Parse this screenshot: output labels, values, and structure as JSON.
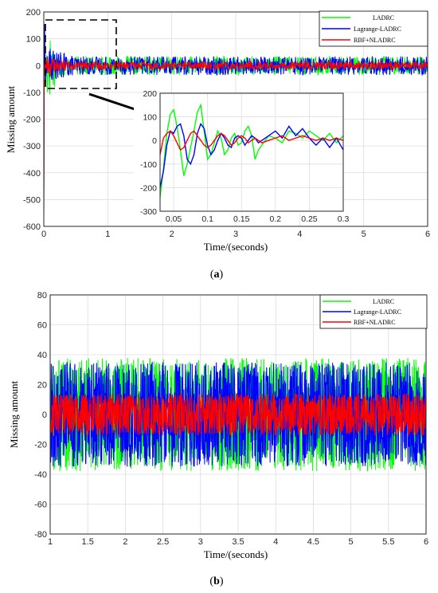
{
  "colors": {
    "LADRC": "#00ff00",
    "Lagrange-LADRC": "#0000ff",
    "RBF+NLADRC": "#ff0000"
  },
  "chart_data": [
    {
      "panel": "a",
      "type": "line",
      "caption": "(a)",
      "caption_letter": "a",
      "xlabel": "Time/(seconds)",
      "ylabel": "Missing amount",
      "xlim": [
        0,
        6
      ],
      "ylim": [
        -600,
        200
      ],
      "xticks": [
        "0",
        "1",
        "2",
        "3",
        "4",
        "5",
        "6"
      ],
      "yticks": [
        "200",
        "100",
        "0",
        "-100",
        "-200",
        "-300",
        "-400",
        "-500",
        "-600"
      ],
      "grid": true,
      "legend_position": "top-right",
      "series": [
        {
          "name": "LADRC",
          "color": "#00ff00",
          "x": [
            0,
            0.005,
            0.02,
            0.05,
            0.1,
            0.2,
            0.3,
            0.5,
            1,
            2,
            3,
            4,
            5,
            6
          ],
          "y": [
            -500,
            -240,
            -150,
            150,
            120,
            60,
            40,
            35,
            35,
            35,
            35,
            35,
            35,
            35
          ]
        },
        {
          "name": "Lagrange-LADRC",
          "color": "#0000ff",
          "x": [
            0,
            0.005,
            0.02,
            0.05,
            0.1,
            0.2,
            0.3,
            0.5,
            1,
            2,
            3,
            4,
            5,
            6
          ],
          "y": [
            -560,
            -200,
            -130,
            70,
            70,
            50,
            50,
            35,
            35,
            35,
            35,
            35,
            35,
            35
          ]
        },
        {
          "name": "RBF+NLADRC",
          "color": "#ff0000",
          "x": [
            0,
            0.005,
            0.02,
            0.05,
            0.1,
            0.2,
            0.3,
            0.5,
            1,
            2,
            3,
            4,
            5,
            6
          ],
          "y": [
            -600,
            -60,
            20,
            40,
            40,
            20,
            20,
            15,
            15,
            15,
            15,
            15,
            15,
            15
          ]
        }
      ],
      "inset": {
        "xlim": [
          0.03,
          0.3
        ],
        "ylim": [
          -300,
          200
        ],
        "xticks": [
          "0.05",
          "0.1",
          "0.15",
          "0.2",
          "0.25",
          "0.3"
        ],
        "yticks": [
          "200",
          "100",
          "0",
          "-100",
          "-200",
          "-300"
        ],
        "series": [
          {
            "name": "LADRC",
            "color": "#00ff00",
            "x": [
              0.03,
              0.035,
              0.04,
              0.045,
              0.05,
              0.055,
              0.06,
              0.065,
              0.07,
              0.075,
              0.08,
              0.085,
              0.09,
              0.095,
              0.1,
              0.105,
              0.11,
              0.115,
              0.12,
              0.125,
              0.13,
              0.135,
              0.14,
              0.145,
              0.15,
              0.155,
              0.16,
              0.165,
              0.17,
              0.175,
              0.18,
              0.19,
              0.2,
              0.21,
              0.22,
              0.23,
              0.24,
              0.25,
              0.26,
              0.27,
              0.28,
              0.29,
              0.3
            ],
            "y": [
              -240,
              -120,
              30,
              110,
              130,
              60,
              -40,
              -150,
              -100,
              -30,
              40,
              120,
              150,
              40,
              -80,
              -60,
              -10,
              40,
              10,
              -60,
              -40,
              10,
              30,
              -20,
              -10,
              40,
              60,
              20,
              -80,
              -40,
              -20,
              20,
              10,
              -10,
              40,
              30,
              10,
              40,
              20,
              0,
              30,
              -10,
              20
            ]
          },
          {
            "name": "Lagrange-LADRC",
            "color": "#0000ff",
            "x": [
              0.03,
              0.035,
              0.04,
              0.045,
              0.05,
              0.055,
              0.06,
              0.065,
              0.07,
              0.075,
              0.08,
              0.085,
              0.09,
              0.095,
              0.1,
              0.105,
              0.11,
              0.115,
              0.12,
              0.125,
              0.13,
              0.135,
              0.14,
              0.145,
              0.15,
              0.155,
              0.16,
              0.165,
              0.17,
              0.175,
              0.18,
              0.19,
              0.2,
              0.21,
              0.22,
              0.23,
              0.24,
              0.25,
              0.26,
              0.27,
              0.28,
              0.29,
              0.3
            ],
            "y": [
              -200,
              -130,
              -20,
              40,
              30,
              60,
              70,
              20,
              -80,
              -100,
              -60,
              30,
              70,
              50,
              -20,
              -60,
              -40,
              0,
              30,
              10,
              -20,
              -30,
              10,
              20,
              10,
              -20,
              0,
              20,
              10,
              -10,
              0,
              20,
              40,
              10,
              60,
              20,
              50,
              10,
              -20,
              10,
              -30,
              10,
              -40
            ]
          },
          {
            "name": "RBF+NLADRC",
            "color": "#ff0000",
            "x": [
              0.03,
              0.035,
              0.04,
              0.045,
              0.05,
              0.055,
              0.06,
              0.065,
              0.07,
              0.075,
              0.08,
              0.085,
              0.09,
              0.095,
              0.1,
              0.105,
              0.11,
              0.115,
              0.12,
              0.125,
              0.13,
              0.135,
              0.14,
              0.145,
              0.15,
              0.155,
              0.16,
              0.165,
              0.17,
              0.175,
              0.18,
              0.19,
              0.2,
              0.21,
              0.22,
              0.23,
              0.24,
              0.25,
              0.26,
              0.27,
              0.28,
              0.29,
              0.3
            ],
            "y": [
              -60,
              10,
              30,
              40,
              20,
              -10,
              -40,
              -30,
              0,
              30,
              40,
              20,
              0,
              -20,
              -30,
              -20,
              0,
              20,
              30,
              20,
              0,
              -20,
              -10,
              10,
              20,
              10,
              -10,
              0,
              10,
              0,
              -10,
              0,
              10,
              20,
              0,
              10,
              20,
              10,
              0,
              10,
              0,
              10,
              0
            ]
          }
        ]
      }
    },
    {
      "panel": "b",
      "type": "line",
      "caption": "(b)",
      "caption_letter": "b",
      "xlabel": "Time/(seconds)",
      "ylabel": "Missing amount",
      "xlim": [
        1,
        6
      ],
      "ylim": [
        -80,
        80
      ],
      "xticks": [
        "1",
        "1.5",
        "2",
        "2.5",
        "3",
        "3.5",
        "4",
        "4.5",
        "5",
        "5.5",
        "6"
      ],
      "yticks": [
        "80",
        "60",
        "40",
        "20",
        "0",
        "-20",
        "-40",
        "-60",
        "-80"
      ],
      "grid": true,
      "legend_position": "top-right",
      "series": [
        {
          "name": "LADRC",
          "color": "#00ff00",
          "x": [
            1,
            6
          ],
          "y_range": [
            -38,
            38
          ]
        },
        {
          "name": "Lagrange-LADRC",
          "color": "#0000ff",
          "x": [
            1,
            6
          ],
          "y_range": [
            -35,
            35
          ]
        },
        {
          "name": "RBF+NLADRC",
          "color": "#ff0000",
          "x": [
            1,
            6
          ],
          "y_range": [
            -14,
            14
          ]
        }
      ]
    }
  ]
}
